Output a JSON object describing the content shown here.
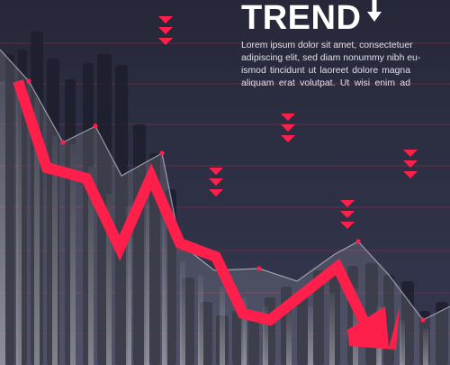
{
  "title": "TREND",
  "body_lines": [
    "Lorem ipsum dolor sit amet, consectetuer",
    "adipiscing elit, sed diam nonummy nibh eu-",
    "ismod tincidunt ut laoreet dolore magna",
    "aliquam erat volutpat. Ut wisi enim ad"
  ],
  "colors": {
    "background": "#2b2e42",
    "accent_red": "#ff1f4b",
    "grid_line": "#7a2d48",
    "text": "#ffffff"
  },
  "icons": {
    "title_arrow": "down-arrow-icon",
    "chevrons": "double-chevron-down-icon"
  }
}
